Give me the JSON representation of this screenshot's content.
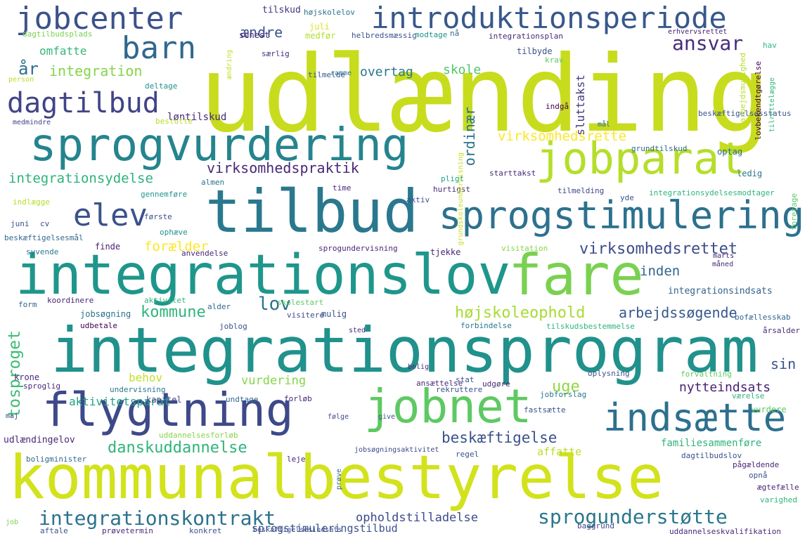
{
  "cloud": {
    "words": [
      {
        "text": "udlænding",
        "color": "#c8dc1e"
      },
      {
        "text": "integrationsprogram",
        "color": "#21918c"
      },
      {
        "text": "kommunalbestyrelse",
        "color": "#d2e21b"
      },
      {
        "text": "integrationslov",
        "color": "#1f968b"
      },
      {
        "text": "tilbud",
        "color": "#2a788e"
      },
      {
        "text": "jobnet",
        "color": "#5ec962"
      },
      {
        "text": "fare",
        "color": "#7ad151"
      },
      {
        "text": "sprogvurdering",
        "color": "#25848e"
      },
      {
        "text": "flygtning",
        "color": "#3e4989"
      },
      {
        "text": "jobparat",
        "color": "#b5de2b"
      },
      {
        "text": "sprogstimulering",
        "color": "#2c718e"
      },
      {
        "text": "introduktionsperiode",
        "color": "#38588c"
      },
      {
        "text": "jobcenter",
        "color": "#3b528b"
      },
      {
        "text": "indsætte",
        "color": "#2d708e"
      },
      {
        "text": "barn",
        "color": "#31688e"
      },
      {
        "text": "dagtilbud",
        "color": "#414487"
      },
      {
        "text": "elev",
        "color": "#3b528b"
      },
      {
        "text": "integrationskontrakt",
        "color": "#2c728e"
      },
      {
        "text": "sprogunderstøtte",
        "color": "#2a778e"
      },
      {
        "text": "ansvar",
        "color": "#472d7b"
      },
      {
        "text": "virksomhedsrettet",
        "color": "#3e4c8a"
      },
      {
        "text": "arbejdssøgende",
        "color": "#38598c"
      },
      {
        "text": "beskæftigelse",
        "color": "#3b528b"
      },
      {
        "text": "højskoleophold",
        "color": "#a8db34"
      },
      {
        "text": "danskuddannelse",
        "color": "#2fb47c"
      },
      {
        "text": "kommune",
        "color": "#2fb47c"
      },
      {
        "text": "virksomhedspraktik",
        "color": "#482878"
      },
      {
        "text": "integrationsydelse",
        "color": "#2db27d"
      },
      {
        "text": "virksomhedsrette",
        "color": "#fde725"
      },
      {
        "text": "forælder",
        "color": "#fde725"
      },
      {
        "text": "ændre",
        "color": "#3b528b"
      },
      {
        "text": "integration",
        "color": "#86d549"
      },
      {
        "text": "år",
        "color": "#2d708e"
      },
      {
        "text": "omfatte",
        "color": "#35b779"
      },
      {
        "text": "overtag",
        "color": "#2a788e"
      },
      {
        "text": "skole",
        "color": "#52c569"
      },
      {
        "text": "lov",
        "color": "#2c718e"
      },
      {
        "text": "uge",
        "color": "#90d743"
      },
      {
        "text": "sin",
        "color": "#3b528b"
      },
      {
        "text": "inden",
        "color": "#33638d"
      },
      {
        "text": "nytteindsats",
        "color": "#482173"
      },
      {
        "text": "vurdering",
        "color": "#86d549"
      },
      {
        "text": "behov",
        "color": "#c0df25"
      },
      {
        "text": "aktivitetsparat",
        "color": "#20a386"
      },
      {
        "text": "tosproget",
        "color": "#3dbc74"
      },
      {
        "text": "opholdstilladelse",
        "color": "#3e4a89"
      },
      {
        "text": "sprogstimuleringstilbud",
        "color": "#3b528b"
      },
      {
        "text": "ordinær",
        "color": "#2c728e"
      },
      {
        "text": "affatte",
        "color": "#b8de29"
      },
      {
        "text": "familiesammenføre",
        "color": "#2fb47c"
      },
      {
        "text": "løntilskud",
        "color": "#482878"
      },
      {
        "text": "tilskud",
        "color": "#46337e"
      },
      {
        "text": "højskolelov",
        "color": "#2e6e8e"
      },
      {
        "text": "juli",
        "color": "#dde318"
      },
      {
        "text": "medfør",
        "color": "#b5de2b"
      },
      {
        "text": "helbredsmæssig",
        "color": "#3b528b"
      },
      {
        "text": "modtage",
        "color": "#21918c"
      },
      {
        "text": "nå",
        "color": "#31688e"
      },
      {
        "text": "integrationsplan",
        "color": "#482878"
      },
      {
        "text": "erhvervsrettet",
        "color": "#482173"
      },
      {
        "text": "dagtilbudsplads",
        "color": "#7ad151"
      },
      {
        "text": "senest",
        "color": "#482878"
      },
      {
        "text": "særlig",
        "color": "#472d7b"
      },
      {
        "text": "tilbyde",
        "color": "#3b528b"
      },
      {
        "text": "sluttakst",
        "color": "#443983"
      },
      {
        "text": "krav",
        "color": "#5ec962"
      },
      {
        "text": "indgå",
        "color": "#440154"
      },
      {
        "text": "mål",
        "color": "#31688e"
      },
      {
        "text": "deltage",
        "color": "#21918c"
      },
      {
        "text": "beslutte",
        "color": "#b5de2b"
      },
      {
        "text": "medmindre",
        "color": "#414487"
      },
      {
        "text": "beskæftigelsesstatus",
        "color": "#3b528b"
      },
      {
        "text": "grundtilskud",
        "color": "#31688e"
      },
      {
        "text": "optag",
        "color": "#31688e"
      },
      {
        "text": "ledig",
        "color": "#2a788e"
      },
      {
        "text": "starttakst",
        "color": "#482878"
      },
      {
        "text": "hurtigst",
        "color": "#482878"
      },
      {
        "text": "pligt",
        "color": "#20a386"
      },
      {
        "text": "tilmelding",
        "color": "#414487"
      },
      {
        "text": "yde",
        "color": "#3b528b"
      },
      {
        "text": "integrationsydelsesmodtager",
        "color": "#2fb47c"
      },
      {
        "text": "gennemføre",
        "color": "#1f968b"
      },
      {
        "text": "indlægge",
        "color": "#b5de2b"
      },
      {
        "text": "første",
        "color": "#3b528b"
      },
      {
        "text": "juni",
        "color": "#3b528b"
      },
      {
        "text": "cv",
        "color": "#3e4a89"
      },
      {
        "text": "ophæve",
        "color": "#21918c"
      },
      {
        "text": "anvendelse",
        "color": "#482878"
      },
      {
        "text": "sprogundervisning",
        "color": "#482878"
      },
      {
        "text": "tjekke",
        "color": "#482878"
      },
      {
        "text": "visitation",
        "color": "#86d549"
      },
      {
        "text": "beskæftigelsesmål",
        "color": "#31688e"
      },
      {
        "text": "syvende",
        "color": "#2a788e"
      },
      {
        "text": "finde",
        "color": "#482173"
      },
      {
        "text": "måned",
        "color": "#482878"
      },
      {
        "text": "integrationsindsats",
        "color": "#33638d"
      },
      {
        "text": "koordinere",
        "color": "#482878"
      },
      {
        "text": "aktivitet",
        "color": "#2fb47c"
      },
      {
        "text": "skolestart",
        "color": "#5ec962"
      },
      {
        "text": "form",
        "color": "#33638d"
      },
      {
        "text": "jobsøgning",
        "color": "#2c728e"
      },
      {
        "text": "udbetale",
        "color": "#440154"
      },
      {
        "text": "alder",
        "color": "#31688e"
      },
      {
        "text": "mulig",
        "color": "#3b528b"
      },
      {
        "text": "visitere",
        "color": "#3e4a89"
      },
      {
        "text": "joblog",
        "color": "#3b528b"
      },
      {
        "text": "bofællesskab",
        "color": "#31688e"
      },
      {
        "text": "forbindelse",
        "color": "#2a788e"
      },
      {
        "text": "tilskudsbestemmelse",
        "color": "#2fb47c"
      },
      {
        "text": "årsalder",
        "color": "#482878"
      },
      {
        "text": "sted",
        "color": "#482878"
      },
      {
        "text": "bolig",
        "color": "#482878"
      },
      {
        "text": "oplysning",
        "color": "#3b528b"
      },
      {
        "text": "forvaltning",
        "color": "#5ec962"
      },
      {
        "text": "krone",
        "color": "#482878"
      },
      {
        "text": "sprogli­g",
        "color": "#482878"
      },
      {
        "text": "undervisning",
        "color": "#2a788e"
      },
      {
        "text": "kapitel",
        "color": "#3e4a89"
      },
      {
        "text": "undtage",
        "color": "#31688e"
      },
      {
        "text": "forløb",
        "color": "#482878"
      },
      {
        "text": "ansættelse",
        "color": "#482878"
      },
      {
        "text": "stat",
        "color": "#3b528b"
      },
      {
        "text": "udgøre",
        "color": "#482878"
      },
      {
        "text": "rekruttere",
        "color": "#3b528b"
      },
      {
        "text": "jobforslag",
        "color": "#2a788e"
      },
      {
        "text": "værelse",
        "color": "#2fb47c"
      },
      {
        "text": "fastsætte",
        "color": "#3b528b"
      },
      {
        "text": "vurdere",
        "color": "#5ec962"
      },
      {
        "text": "maj",
        "color": "#3e4a89"
      },
      {
        "text": "følge",
        "color": "#3e4a89"
      },
      {
        "text": "give",
        "color": "#3b528b"
      },
      {
        "text": "udlændingelov",
        "color": "#482878"
      },
      {
        "text": "uddannelsesforløb",
        "color": "#86d549"
      },
      {
        "text": "jobsøgningsaktivitet",
        "color": "#3e4a89"
      },
      {
        "text": "regel",
        "color": "#3b528b"
      },
      {
        "text": "dagtilbudslov",
        "color": "#3b528b"
      },
      {
        "text": "boligminister",
        "color": "#31688e"
      },
      {
        "text": "leje",
        "color": "#482878"
      },
      {
        "text": "pågældende",
        "color": "#482878"
      },
      {
        "text": "opnå",
        "color": "#3b528b"
      },
      {
        "text": "ægtefælle",
        "color": "#482878"
      },
      {
        "text": "varighed",
        "color": "#2fb47c"
      },
      {
        "text": "job",
        "color": "#7ad151"
      },
      {
        "text": "aftale",
        "color": "#3b528b"
      },
      {
        "text": "prøvetermin",
        "color": "#482878"
      },
      {
        "text": "konkret",
        "color": "#3b528b"
      },
      {
        "text": "beskæftigelsesindsats",
        "color": "#3b528b"
      },
      {
        "text": "baggrund",
        "color": "#3e4a89"
      },
      {
        "text": "uddannelseskvalifikation",
        "color": "#482878"
      },
      {
        "text": "arbejdsmulighed",
        "color": "#b5de2b"
      },
      {
        "text": "lovbekendtgørelse",
        "color": "#440154"
      },
      {
        "text": "tilrettelægge",
        "color": "#35b779"
      },
      {
        "text": "hav",
        "color": "#2fb47c"
      },
      {
        "text": "foretage",
        "color": "#5ec962"
      },
      {
        "text": "ændring",
        "color": "#c0df25"
      },
      {
        "text": "tilmelde",
        "color": "#3b528b"
      },
      {
        "text": "ramme",
        "color": "#2c728e"
      },
      {
        "text": "almen",
        "color": "#2c728e"
      },
      {
        "text": "time",
        "color": "#482878"
      },
      {
        "text": "aktiv",
        "color": "#3b528b"
      },
      {
        "text": "grundskoleundervisning",
        "color": "#c8dc1e"
      },
      {
        "text": "prøve",
        "color": "#31688e"
      },
      {
        "text": "person",
        "color": "#b8de29"
      },
      {
        "text": "marts",
        "color": "#482878"
      }
    ]
  }
}
